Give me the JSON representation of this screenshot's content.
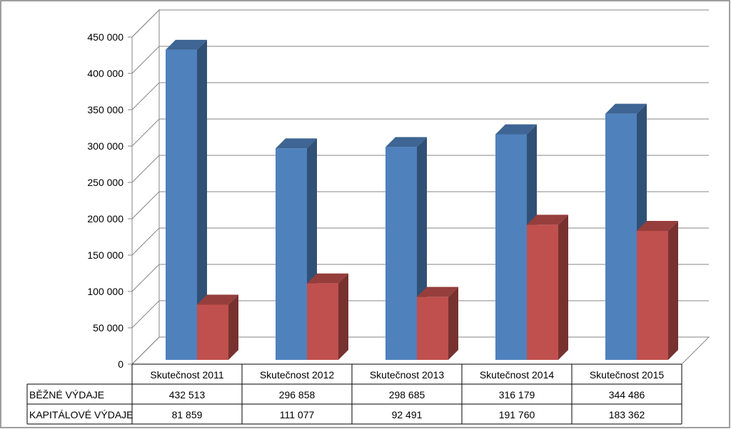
{
  "chart_data": {
    "type": "bar",
    "title": "",
    "xlabel": "",
    "ylabel": "",
    "ylim": [
      0,
      450000
    ],
    "y_ticks": [
      "0",
      "50 000",
      "100 000",
      "150 000",
      "200 000",
      "250 000",
      "300 000",
      "350 000",
      "400 000",
      "450 000"
    ],
    "grid": true,
    "style": "3d-clustered-column-with-data-table",
    "categories": [
      "Skutečnost 2011",
      "Skutečnost 2012",
      "Skutečnost 2013",
      "Skutečnost 2014",
      "Skutečnost 2015"
    ],
    "series": [
      {
        "name": "BĚŽNÉ VÝDAJE",
        "color": "#4F81BD",
        "values": [
          432513,
          296858,
          298685,
          316179,
          344486
        ],
        "labels": [
          "432 513",
          "296 858",
          "298 685",
          "316 179",
          "344 486"
        ]
      },
      {
        "name": "KAPITÁLOVÉ VÝDAJE",
        "color": "#C0504D",
        "values": [
          81859,
          111077,
          92491,
          191760,
          183362
        ],
        "labels": [
          "81 859",
          "111 077",
          "92 491",
          "191 760",
          "183 362"
        ]
      }
    ]
  }
}
